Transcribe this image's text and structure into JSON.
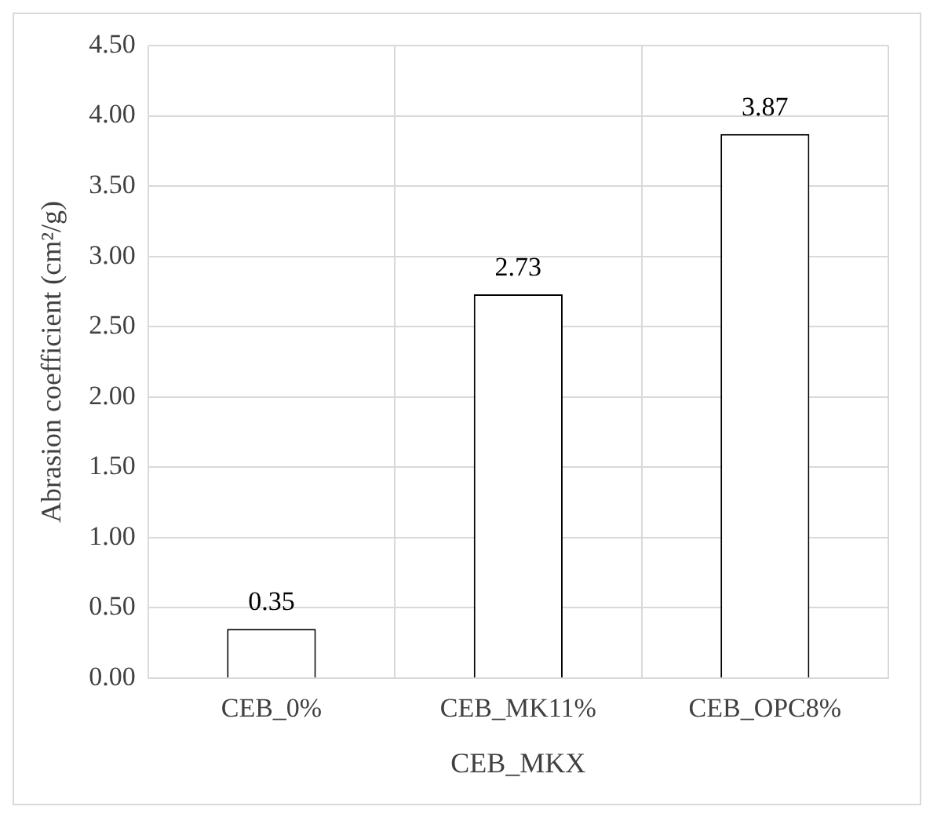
{
  "chart_data": {
    "type": "bar",
    "xlabel": "CEB_MKX",
    "ylabel": "Abrasion coefficient (cm²/g)",
    "categories": [
      "CEB_0%",
      "CEB_MK11%",
      "CEB_OPC8%"
    ],
    "values": [
      0.35,
      2.73,
      3.87
    ],
    "color": "#ffffff",
    "data_labels": true,
    "ylim": [
      0,
      4.5
    ],
    "yticks": [
      {
        "value": 0,
        "label": "0.00"
      },
      {
        "value": 0.5,
        "label": "0.50"
      },
      {
        "value": 1,
        "label": "1.00"
      },
      {
        "value": 1.5,
        "label": "1.50"
      },
      {
        "value": 2,
        "label": "2.00"
      },
      {
        "value": 2.5,
        "label": "2.50"
      },
      {
        "value": 3,
        "label": "3.00"
      },
      {
        "value": 3.5,
        "label": "3.50"
      },
      {
        "value": 4,
        "label": "4.00"
      },
      {
        "value": 4.5,
        "label": "4.50"
      }
    ],
    "grid": true,
    "legend": false
  }
}
